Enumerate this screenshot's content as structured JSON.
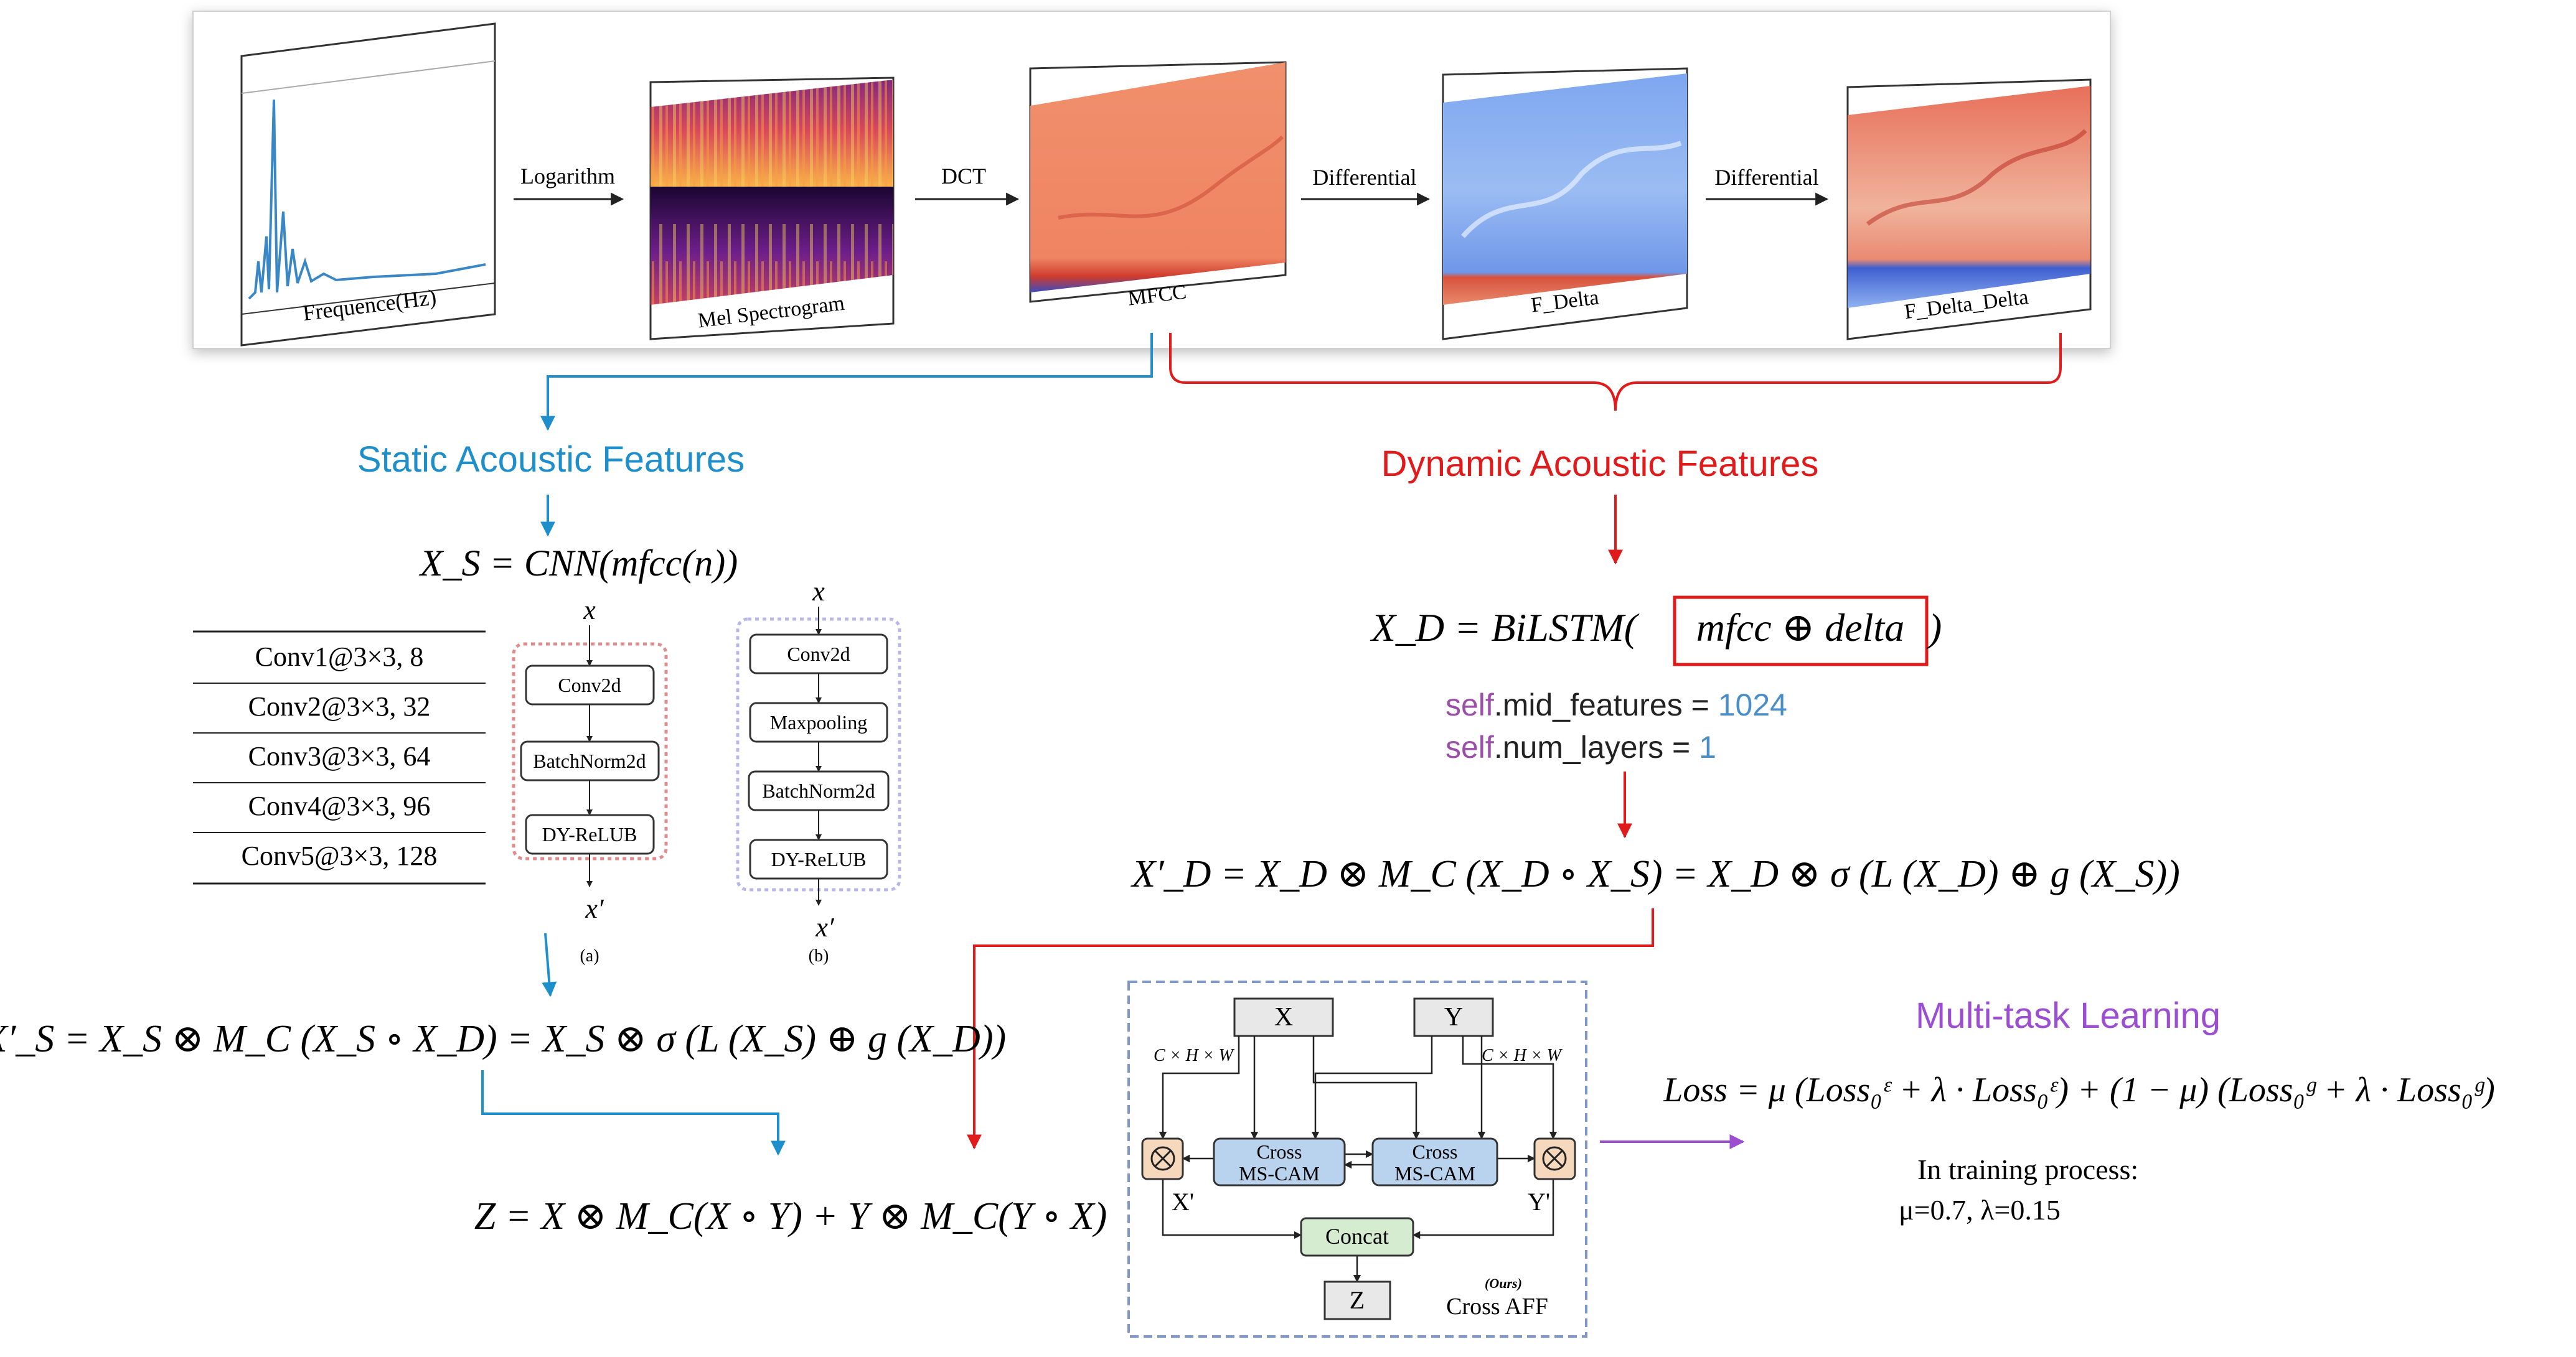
{
  "pipeline": {
    "panels": [
      {
        "label": "Frequence(Hz)"
      },
      {
        "label": "Mel Spectrogram"
      },
      {
        "label": "MFCC"
      },
      {
        "label": "F_Delta"
      },
      {
        "label": "F_Delta_Delta"
      }
    ],
    "arrows": [
      "Logarithm",
      "DCT",
      "Differential",
      "Differential"
    ]
  },
  "static": {
    "title": "Static Acoustic Features",
    "color": "#1f8fcc",
    "equation": "X_S = CNN(mfcc(n))",
    "conv_table": [
      "Conv1@3×3, 8",
      "Conv2@3×3, 32",
      "Conv3@3×3, 64",
      "Conv4@3×3, 96",
      "Conv5@3×3, 128"
    ],
    "block_a": {
      "input": "x",
      "layers": [
        "Conv2d",
        "BatchNorm2d",
        "DY-ReLUB"
      ],
      "output": "x′",
      "caption": "(a)"
    },
    "block_b": {
      "input": "x",
      "layers": [
        "Conv2d",
        "Maxpooling",
        "BatchNorm2d",
        "DY-ReLUB"
      ],
      "output": "x′",
      "caption": "(b)"
    },
    "fusion_equation": "X′_S = X_S ⊗ M_C (X_S ∘ X_D) = X_S ⊗ σ (L (X_S) ⊕ g (X_D))"
  },
  "dynamic": {
    "title": "Dynamic Acoustic Features",
    "color": "#e01b1b",
    "equation_prefix": "X_D = BiLSTM(",
    "equation_boxed": "mfcc ⊕ delta",
    "equation_suffix": ")",
    "code": [
      {
        "self": "self",
        "attr": ".mid_features = ",
        "value": "1024"
      },
      {
        "self": "self",
        "attr": ".num_layers = ",
        "value": "1"
      }
    ],
    "fusion_equation": "X′_D = X_D ⊗ M_C (X_D ∘ X_S) = X_D ⊗ σ (L (X_D) ⊕ g (X_S))"
  },
  "final_equation": "Z = X ⊗ M_C(X ∘ Y) + Y ⊗ M_C(Y ∘ X)",
  "cross_aff": {
    "x_label": "X",
    "y_label": "Y",
    "dim_label": "C × H × W",
    "cam_label_1": "Cross",
    "cam_label_2": "MS-CAM",
    "x_prime": "X'",
    "y_prime": "Y'",
    "concat": "Concat",
    "z": "Z",
    "ours": "(Ours)",
    "name": "Cross AFF"
  },
  "multitask": {
    "title": "Multi-task Learning",
    "color": "#9b4fd0",
    "loss": "Loss = μ (Loss₀ᵋ + λ · Loss₀ᵋ) + (1 − μ) (Loss₀ᵍ + λ · Loss₀ᵍ)",
    "note_1": "In training process:",
    "note_2": "μ=0.7, λ=0.15"
  }
}
